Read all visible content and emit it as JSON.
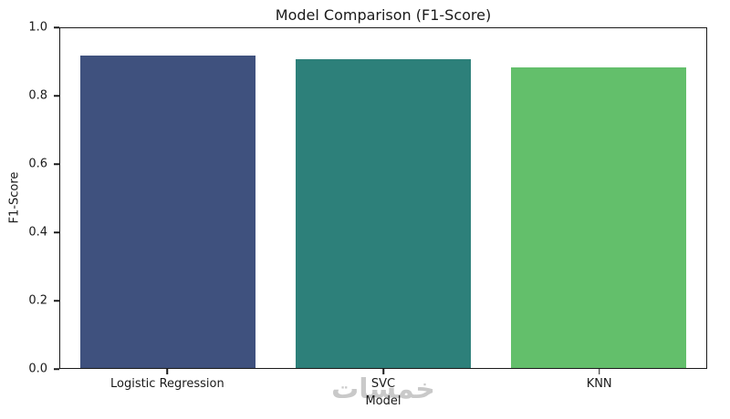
{
  "chart_data": {
    "type": "bar",
    "title": "Model Comparison (F1-Score)",
    "xlabel": "Model",
    "ylabel": "F1-Score",
    "categories": [
      "Logistic Regression",
      "SVC",
      "KNN"
    ],
    "values": [
      0.92,
      0.91,
      0.885
    ],
    "colors": [
      "#3f517e",
      "#2d807a",
      "#63bf6b"
    ],
    "ylim": [
      0.0,
      1.0
    ],
    "yticks": [
      0.0,
      0.2,
      0.4,
      0.6,
      0.8,
      1.0
    ],
    "grid": false,
    "legend_position": "none"
  },
  "watermark": "خمسات"
}
